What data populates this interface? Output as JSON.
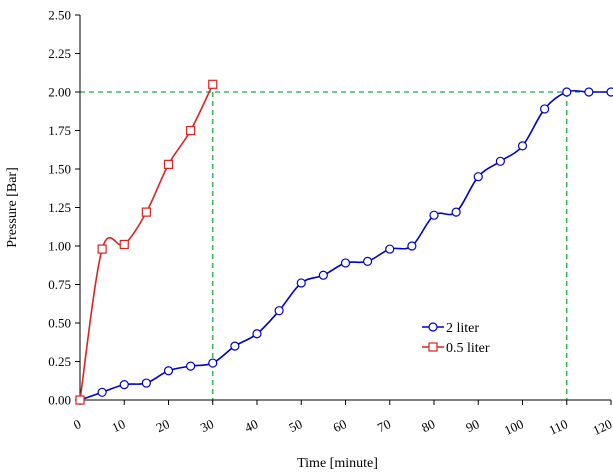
{
  "chart_data": {
    "type": "line",
    "title": "",
    "xlabel": "Time [minute]",
    "ylabel": "Pressure  [Bar]",
    "xlim": [
      0,
      120
    ],
    "ylim": [
      0,
      2.5
    ],
    "x_ticks": [
      "0",
      "10",
      "20",
      "30",
      "40",
      "50",
      "60",
      "70",
      "80",
      "90",
      "100",
      "110",
      "120"
    ],
    "y_ticks": [
      "0.00",
      "0.25",
      "0.50",
      "0.75",
      "1.00",
      "1.25",
      "1.50",
      "1.75",
      "2.00",
      "2.25",
      "2.50"
    ],
    "grid": false,
    "legend_position": "lower-right",
    "series": [
      {
        "name": "2 liter",
        "color": "#0000cc",
        "marker": "circle",
        "x": [
          0,
          5,
          10,
          15,
          20,
          25,
          30,
          35,
          40,
          45,
          50,
          55,
          60,
          65,
          70,
          75,
          80,
          85,
          90,
          95,
          100,
          105,
          110,
          115,
          120
        ],
        "y": [
          0,
          0.05,
          0.1,
          0.11,
          0.19,
          0.22,
          0.24,
          0.35,
          0.43,
          0.58,
          0.76,
          0.81,
          0.89,
          0.9,
          0.98,
          1.0,
          1.2,
          1.22,
          1.45,
          1.55,
          1.65,
          1.89,
          2.0,
          2.0,
          2.0
        ]
      },
      {
        "name": "0.5 liter",
        "color": "#dd2222",
        "marker": "square",
        "x": [
          0,
          5,
          10,
          15,
          20,
          25,
          30
        ],
        "y": [
          0,
          0.98,
          1.01,
          1.22,
          1.53,
          1.75,
          2.05
        ]
      }
    ],
    "reference_lines": {
      "color": "#22aa44",
      "style": "dashed",
      "y": 2.0,
      "x": [
        30,
        110
      ]
    }
  }
}
